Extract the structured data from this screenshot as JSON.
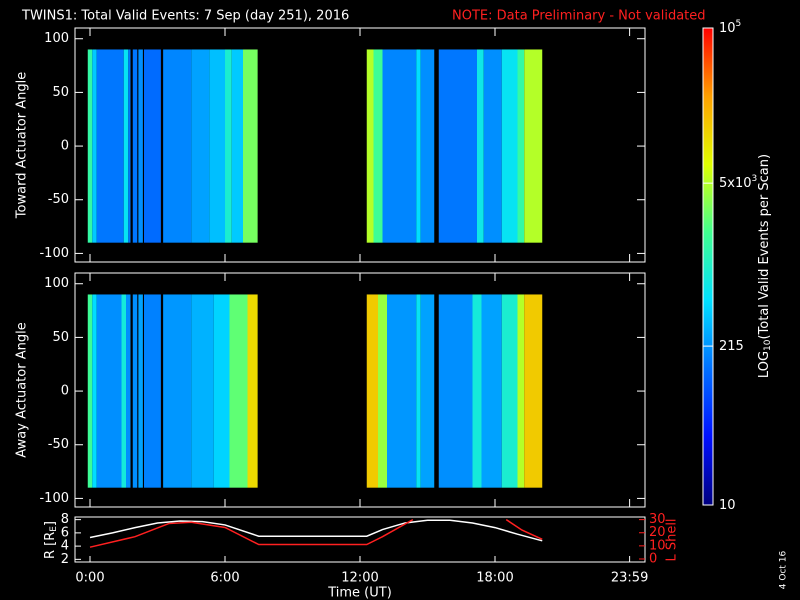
{
  "title": "TWINS1: Total Valid Events:  7 Sep (day 251), 2016",
  "note": "NOTE: Data Preliminary - Not validated",
  "footer": "4 Oct 16",
  "colorbar": {
    "scale": "log",
    "lim": [
      10,
      100000
    ],
    "ticks": [
      10,
      215,
      {
        "value": 5000,
        "label": "5x10",
        "sup": "3"
      },
      {
        "value": 100000,
        "label": "10",
        "sup": "5"
      }
    ],
    "label_parts": [
      "LOG",
      "10",
      "(Total Valid Events per Scan)"
    ],
    "colormap": [
      "#000080",
      "#0010ff",
      "#0070ff",
      "#00e0ff",
      "#40ff90",
      "#e0ff00",
      "#ffa000",
      "#ff0000"
    ]
  },
  "chart_data": [
    {
      "type": "heatmap",
      "ylabel": "Toward Actuator Angle",
      "ylim": [
        -108,
        110
      ],
      "yticks": [
        -100,
        -50,
        0,
        50,
        100
      ],
      "y_extent": [
        -90,
        90
      ],
      "stripes": {
        "x0": [
          -0.1,
          0.1,
          0.3,
          1.5,
          1.7,
          1.9,
          2.15,
          2.4,
          3.25,
          4.5,
          5.3,
          6.0,
          6.3,
          6.8,
          12.3,
          12.6,
          13.0,
          14.5,
          14.7,
          15.5,
          17.2,
          17.5,
          18.3,
          19.0,
          19.3
        ],
        "x1": [
          0.1,
          0.3,
          1.5,
          1.7,
          1.8,
          2.1,
          2.35,
          3.15,
          4.5,
          5.3,
          6.0,
          6.3,
          6.8,
          7.45,
          12.6,
          13.0,
          14.5,
          14.7,
          15.3,
          17.2,
          17.5,
          18.3,
          19.0,
          19.3,
          20.1
        ],
        "values": [
          1500,
          400,
          150,
          600,
          150,
          150,
          200,
          130,
          180,
          250,
          350,
          900,
          400,
          3000,
          5000,
          1800,
          180,
          500,
          200,
          150,
          700,
          200,
          600,
          1500,
          5000
        ]
      }
    },
    {
      "type": "heatmap",
      "ylabel": "Away Actuator Angle",
      "ylim": [
        -108,
        110
      ],
      "yticks": [
        -100,
        -50,
        0,
        50,
        100
      ],
      "y_extent": [
        -90,
        90
      ],
      "stripes": {
        "x0": [
          -0.1,
          0.1,
          0.3,
          1.4,
          1.6,
          1.9,
          2.15,
          2.4,
          3.25,
          4.5,
          5.5,
          6.2,
          7.0,
          12.3,
          12.8,
          13.2,
          14.5,
          14.7,
          15.5,
          17.0,
          17.4,
          18.3,
          19.0,
          19.3
        ],
        "x1": [
          0.1,
          0.3,
          1.4,
          1.6,
          1.8,
          2.1,
          2.35,
          3.15,
          4.5,
          5.5,
          6.2,
          7.0,
          7.45,
          12.8,
          13.2,
          14.5,
          14.7,
          15.3,
          17.0,
          17.4,
          18.3,
          19.0,
          19.3,
          20.1
        ],
        "values": [
          1800,
          500,
          200,
          800,
          200,
          200,
          250,
          170,
          220,
          300,
          450,
          2500,
          12000,
          15000,
          4000,
          220,
          600,
          250,
          200,
          800,
          250,
          900,
          5000,
          15000
        ]
      }
    },
    {
      "type": "line",
      "ylabel_parts": [
        "R [R",
        "E",
        "]"
      ],
      "y2label": "L Shell",
      "xlabel": "Time (UT)",
      "xlim": [
        -0.667,
        24.667
      ],
      "xticks": [
        {
          "value": 0,
          "label": "0:00"
        },
        {
          "value": 6,
          "label": "6:00"
        },
        {
          "value": 12,
          "label": "12:00"
        },
        {
          "value": 18,
          "label": "18:00"
        },
        {
          "value": 23.983,
          "label": "23:59"
        }
      ],
      "ylim": [
        1.6,
        8.4
      ],
      "yticks": [
        2,
        4,
        6,
        8
      ],
      "y2lim": [
        -2.3,
        32
      ],
      "y2ticks": [
        0,
        10,
        20,
        30
      ],
      "series": [
        {
          "name": "R",
          "color": "#ffffff",
          "x": [
            0,
            1,
            2,
            3,
            4,
            5,
            6,
            7.5,
            12.3,
            13,
            14,
            15,
            16,
            17,
            18,
            19,
            20.1
          ],
          "values": [
            5.3,
            6,
            6.8,
            7.5,
            7.8,
            7.7,
            7.2,
            5.5,
            5.5,
            6.5,
            7.5,
            7.9,
            7.9,
            7.5,
            6.8,
            5.8,
            4.8
          ]
        },
        {
          "name": "L",
          "color": "#ff2020",
          "axis": "y2",
          "x": [
            0,
            2,
            3.5,
            4.5,
            6,
            7.5,
            12.3,
            13,
            14.35,
            16,
            18.5,
            19.2,
            20.1
          ],
          "values": [
            9,
            17,
            27,
            28,
            24,
            11,
            11,
            17,
            30,
            null,
            30,
            22,
            15
          ]
        }
      ]
    }
  ]
}
